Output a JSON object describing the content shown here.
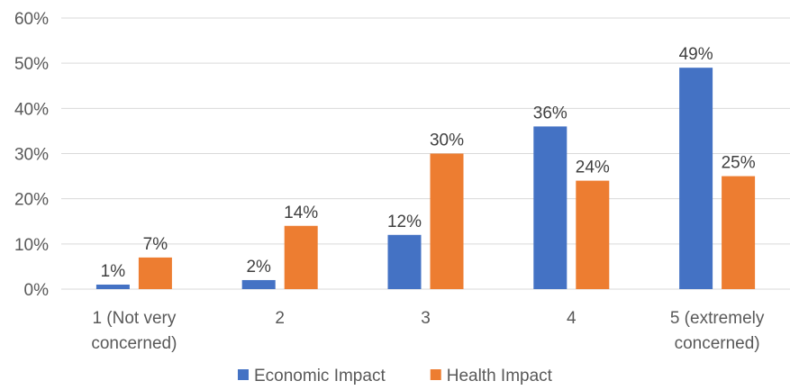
{
  "chart_data": {
    "type": "bar",
    "categories": [
      [
        "1 (Not very",
        "concerned)"
      ],
      [
        "2"
      ],
      [
        "3"
      ],
      [
        "4"
      ],
      [
        "5 (extremely",
        "concerned)"
      ]
    ],
    "series": [
      {
        "name": "Economic Impact",
        "values": [
          1,
          2,
          12,
          36,
          49
        ],
        "color": "#4472c4"
      },
      {
        "name": "Health Impact",
        "values": [
          7,
          14,
          30,
          24,
          25
        ],
        "color": "#ed7d31"
      }
    ],
    "ylim": [
      0,
      60
    ],
    "yticks": [
      0,
      10,
      20,
      30,
      40,
      50,
      60
    ],
    "value_suffix": "%",
    "grid": true,
    "legend_position": "bottom"
  }
}
